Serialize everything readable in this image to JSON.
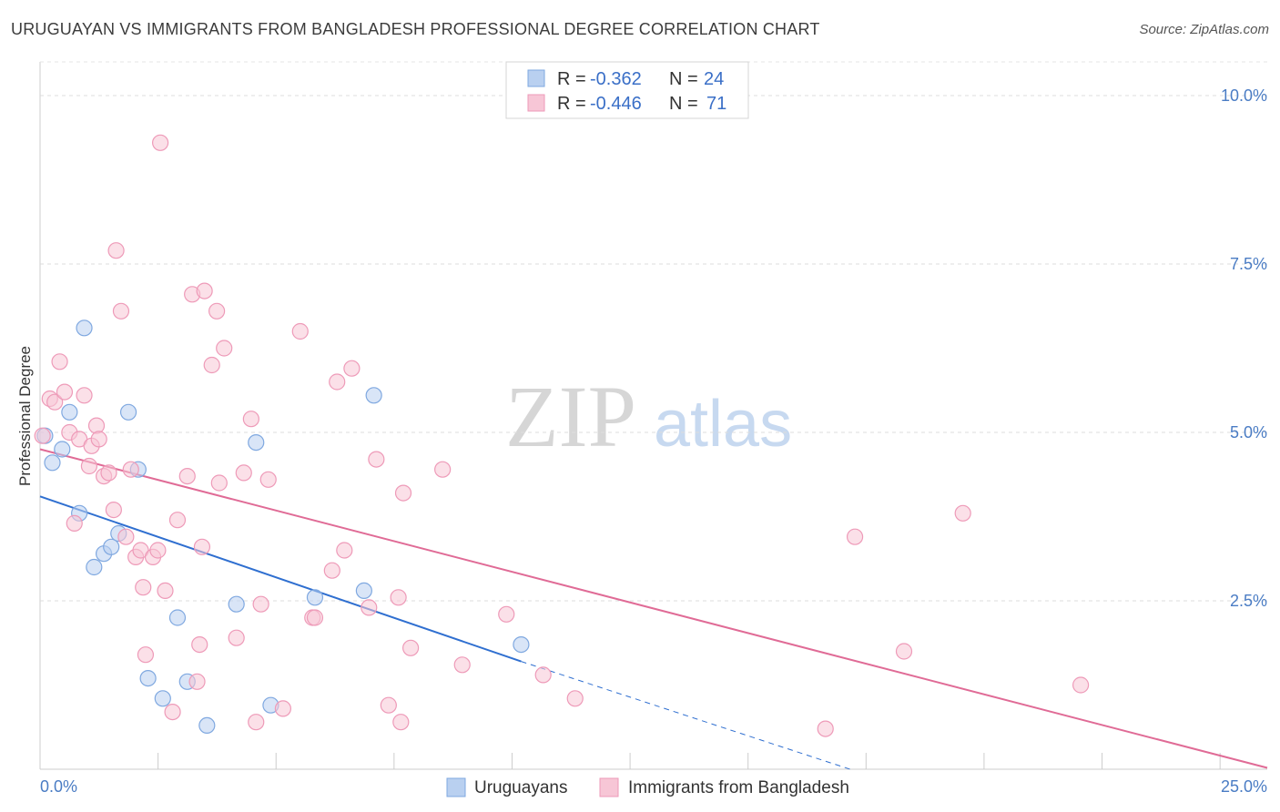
{
  "title": "URUGUAYAN VS IMMIGRANTS FROM BANGLADESH PROFESSIONAL DEGREE CORRELATION CHART",
  "source": "Source: ZipAtlas.com",
  "watermark": {
    "zip": "ZIP",
    "atlas": "atlas"
  },
  "chart_data": {
    "type": "scatter",
    "title": "URUGUAYAN VS IMMIGRANTS FROM BANGLADESH PROFESSIONAL DEGREE CORRELATION CHART",
    "xlabel": "",
    "ylabel": "Professional Degree",
    "xlim": [
      0,
      25
    ],
    "ylim": [
      0,
      10.5
    ],
    "x_tick_labels": {
      "left": "0.0%",
      "right": "25.0%"
    },
    "y_ticks": [
      {
        "value": 2.5,
        "label": "2.5%"
      },
      {
        "value": 5.0,
        "label": "5.0%"
      },
      {
        "value": 7.5,
        "label": "7.5%"
      },
      {
        "value": 10.0,
        "label": "10.0%"
      }
    ],
    "legend": {
      "r_label": "R =",
      "n_label": "N =",
      "entries": [
        {
          "name": "Uruguayans",
          "r": "-0.362",
          "n": "24"
        },
        {
          "name": "Immigrants from Bangladesh",
          "r": "-0.446",
          "n": "71"
        }
      ]
    },
    "series": [
      {
        "name": "Uruguayans",
        "color": "#7fa8e0",
        "fill": "#b9d0f0",
        "line_color": "#2f6fd0",
        "trend": {
          "x0": 0,
          "y0": 4.05,
          "x1": 9.8,
          "y1": 1.6,
          "dash_x1": 16.5,
          "dash_y1": 0.0
        },
        "points": [
          [
            0.1,
            4.95
          ],
          [
            0.25,
            4.55
          ],
          [
            0.45,
            4.75
          ],
          [
            0.6,
            5.3
          ],
          [
            0.9,
            6.55
          ],
          [
            0.8,
            3.8
          ],
          [
            1.1,
            3.0
          ],
          [
            1.3,
            3.2
          ],
          [
            1.45,
            3.3
          ],
          [
            1.6,
            3.5
          ],
          [
            1.8,
            5.3
          ],
          [
            2.0,
            4.45
          ],
          [
            2.2,
            1.35
          ],
          [
            2.5,
            1.05
          ],
          [
            2.8,
            2.25
          ],
          [
            3.0,
            1.3
          ],
          [
            3.4,
            0.65
          ],
          [
            4.0,
            2.45
          ],
          [
            4.4,
            4.85
          ],
          [
            4.7,
            0.95
          ],
          [
            5.6,
            2.55
          ],
          [
            6.6,
            2.65
          ],
          [
            6.8,
            5.55
          ],
          [
            9.8,
            1.85
          ]
        ]
      },
      {
        "name": "Immigrants from Bangladesh",
        "color": "#ee9ab8",
        "fill": "#f7c6d6",
        "line_color": "#e06b96",
        "trend": {
          "x0": 0,
          "y0": 4.75,
          "x1": 25,
          "y1": 0.02
        },
        "points": [
          [
            0.05,
            4.95
          ],
          [
            0.2,
            5.5
          ],
          [
            0.3,
            5.45
          ],
          [
            0.4,
            6.05
          ],
          [
            0.5,
            5.6
          ],
          [
            0.6,
            5.0
          ],
          [
            0.7,
            3.65
          ],
          [
            0.8,
            4.9
          ],
          [
            0.9,
            5.55
          ],
          [
            1.0,
            4.5
          ],
          [
            1.05,
            4.8
          ],
          [
            1.15,
            5.1
          ],
          [
            1.2,
            4.9
          ],
          [
            1.3,
            4.35
          ],
          [
            1.4,
            4.4
          ],
          [
            1.5,
            3.85
          ],
          [
            1.55,
            7.7
          ],
          [
            1.65,
            6.8
          ],
          [
            1.75,
            3.45
          ],
          [
            1.85,
            4.45
          ],
          [
            1.95,
            3.15
          ],
          [
            2.05,
            3.25
          ],
          [
            2.1,
            2.7
          ],
          [
            2.15,
            1.7
          ],
          [
            2.3,
            3.15
          ],
          [
            2.4,
            3.25
          ],
          [
            2.45,
            9.3
          ],
          [
            2.55,
            2.65
          ],
          [
            2.7,
            0.85
          ],
          [
            2.8,
            3.7
          ],
          [
            3.0,
            4.35
          ],
          [
            3.1,
            7.05
          ],
          [
            3.2,
            1.3
          ],
          [
            3.25,
            1.85
          ],
          [
            3.3,
            3.3
          ],
          [
            3.35,
            7.1
          ],
          [
            3.5,
            6.0
          ],
          [
            3.6,
            6.8
          ],
          [
            3.65,
            4.25
          ],
          [
            3.75,
            6.25
          ],
          [
            4.0,
            1.95
          ],
          [
            4.15,
            4.4
          ],
          [
            4.3,
            5.2
          ],
          [
            4.4,
            0.7
          ],
          [
            4.5,
            2.45
          ],
          [
            4.65,
            4.3
          ],
          [
            4.95,
            0.9
          ],
          [
            5.3,
            6.5
          ],
          [
            5.55,
            2.25
          ],
          [
            5.6,
            2.25
          ],
          [
            5.95,
            2.95
          ],
          [
            6.05,
            5.75
          ],
          [
            6.2,
            3.25
          ],
          [
            6.35,
            5.95
          ],
          [
            6.7,
            2.4
          ],
          [
            6.85,
            4.6
          ],
          [
            7.1,
            0.95
          ],
          [
            7.3,
            2.55
          ],
          [
            7.35,
            0.7
          ],
          [
            7.4,
            4.1
          ],
          [
            7.55,
            1.8
          ],
          [
            8.2,
            4.45
          ],
          [
            8.6,
            1.55
          ],
          [
            9.5,
            2.3
          ],
          [
            10.25,
            1.4
          ],
          [
            10.9,
            1.05
          ],
          [
            16.0,
            0.6
          ],
          [
            16.6,
            3.45
          ],
          [
            17.6,
            1.75
          ],
          [
            18.8,
            3.8
          ],
          [
            21.2,
            1.25
          ]
        ]
      }
    ]
  }
}
